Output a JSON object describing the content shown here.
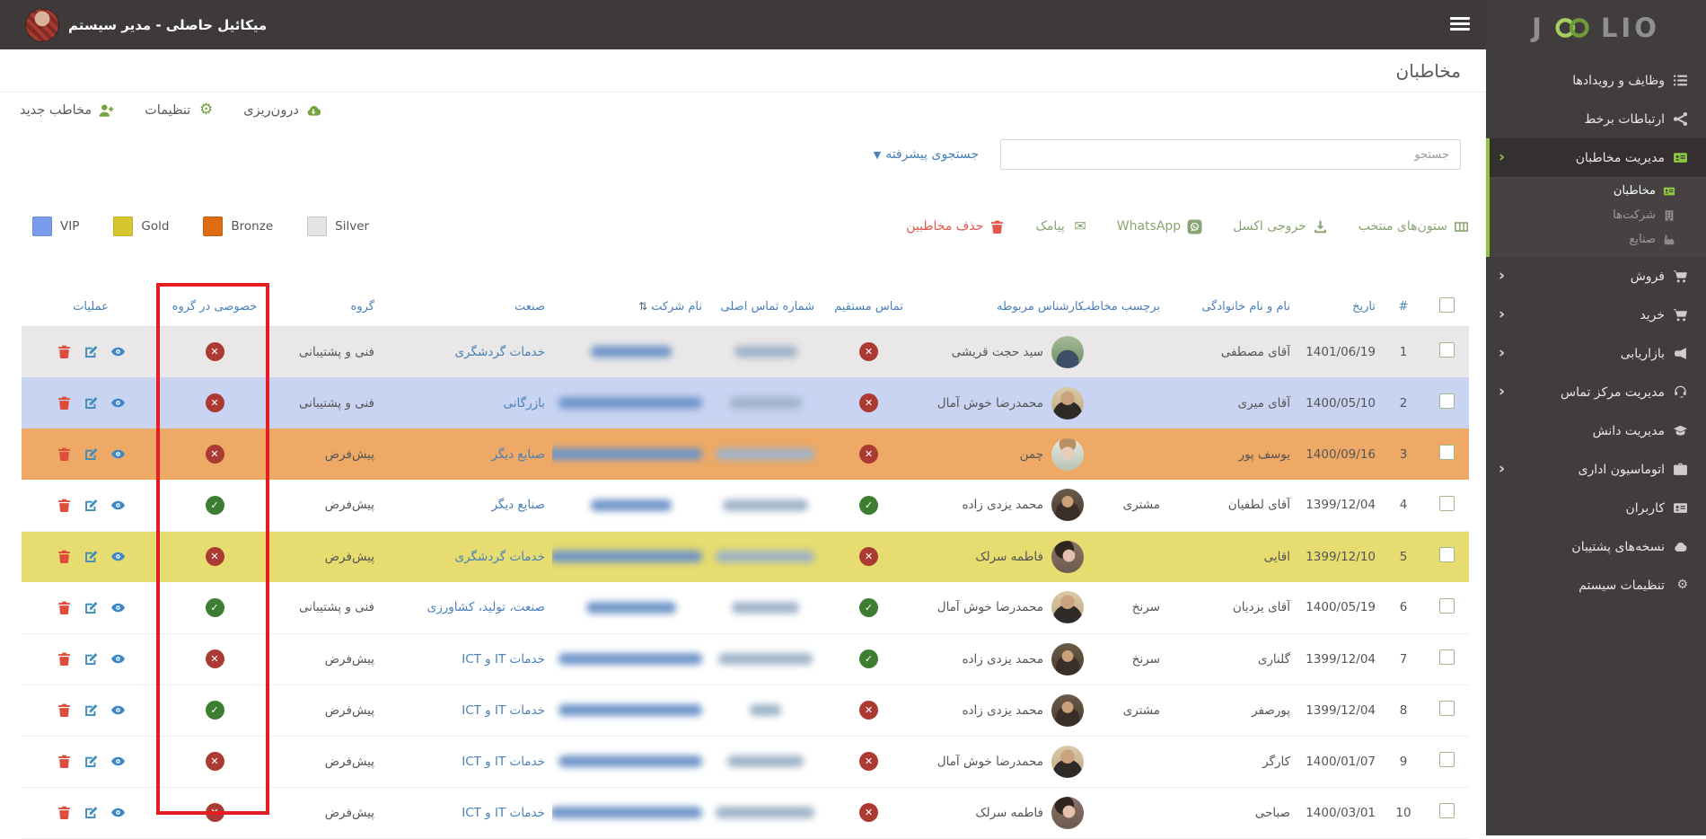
{
  "topbar": {
    "user_name": "میکائیل حاصلی - مدیر سیستم"
  },
  "sidebar": {
    "logo_left": "J",
    "logo_right": "LIO",
    "menu": [
      {
        "label": "وظایف و رویدادها",
        "icon": "tasks-icon"
      },
      {
        "label": "ارتباطات برخط",
        "icon": "network-icon"
      },
      {
        "label": "مدیریت مخاطبان",
        "icon": "idcard-icon",
        "chevron": true,
        "active": true,
        "children": [
          {
            "label": "مخاطبان",
            "icon": "idcard-icon",
            "active": true
          },
          {
            "label": "شرکت‌ها",
            "icon": "building-icon"
          },
          {
            "label": "صنایع",
            "icon": "factory-icon"
          }
        ]
      },
      {
        "label": "فروش",
        "icon": "cart-icon",
        "chevron": true
      },
      {
        "label": "خرید",
        "icon": "cart-icon",
        "chevron": true
      },
      {
        "label": "بازاریابی",
        "icon": "megaphone-icon",
        "chevron": true
      },
      {
        "label": "مدیریت مرکز تماس",
        "icon": "headset-icon",
        "chevron": true
      },
      {
        "label": "مدیریت دانش",
        "icon": "graduation-icon"
      },
      {
        "label": "اتوماسیون اداری",
        "icon": "briefcase-icon",
        "chevron": true
      },
      {
        "label": "کاربران",
        "icon": "idcard-icon"
      },
      {
        "label": "نسخه‌های پشتیبان",
        "icon": "backup-icon"
      },
      {
        "label": "تنظیمات سیستم",
        "icon": "gear-icon"
      }
    ]
  },
  "page": {
    "title": "مخاطبان",
    "header_actions": [
      {
        "label": "مخاطب جدید",
        "icon": "person-plus-icon"
      },
      {
        "label": "تنظیمات",
        "icon": "gear-icon"
      },
      {
        "label": "درون‌ریزی",
        "icon": "cloud-import-icon"
      }
    ],
    "search": {
      "placeholder": "جستجو",
      "advanced_label": "جستجوی پیشرفته"
    },
    "legend": [
      {
        "label": "VIP",
        "color": "#7b9bee"
      },
      {
        "label": "Gold",
        "color": "#d8c630"
      },
      {
        "label": "Bronze",
        "color": "#e06c12"
      },
      {
        "label": "Silver",
        "color": "#e5e2e5"
      }
    ],
    "table_actions": [
      {
        "label": "ستون‌های منتخب",
        "icon": "columns-icon",
        "style": "green"
      },
      {
        "label": "خروجی اکسل",
        "icon": "download-icon",
        "style": "green"
      },
      {
        "label": "WhatsApp",
        "icon": "whatsapp-icon",
        "style": "green"
      },
      {
        "label": "پیامک",
        "icon": "envelope-icon",
        "style": "green"
      },
      {
        "label": "حذف مخاطبین",
        "icon": "trash-icon",
        "style": "red"
      }
    ]
  },
  "table": {
    "columns": [
      {
        "label": "",
        "key": "check"
      },
      {
        "label": "#",
        "key": "num"
      },
      {
        "label": "تاریخ",
        "key": "date"
      },
      {
        "label": "نام و نام خانوادگی",
        "key": "name"
      },
      {
        "label": "برچسب مخاطب",
        "key": "tag"
      },
      {
        "label": "کارشناس مربوطه",
        "key": "expert"
      },
      {
        "label": "تماس مستقیم",
        "key": "direct"
      },
      {
        "label": "شماره تماس اصلی",
        "key": "phone"
      },
      {
        "label": "نام شرکت",
        "key": "company",
        "sortable": true
      },
      {
        "label": "صنعت",
        "key": "industry"
      },
      {
        "label": "گروه",
        "key": "group"
      },
      {
        "label": "خصوصی در گروه",
        "key": "private"
      },
      {
        "label": "عملیات",
        "key": "ops"
      }
    ],
    "rows": [
      {
        "num": "1",
        "date": "1401/06/19",
        "name": "آقای مصطفی",
        "tag": "",
        "expert": "سید حجت قریشی",
        "avatar": "ghoreyshi",
        "direct": false,
        "phone_blur_w": 70,
        "company_blur_w": 90,
        "industry": "خدمات گردشگری",
        "group": "فنی و پشتیبانی",
        "private": false,
        "color": "silver"
      },
      {
        "num": "2",
        "date": "1400/05/10",
        "name": "آقای میری",
        "tag": "",
        "expert": "محمدرضا خوش آمال",
        "avatar": "khoshamal",
        "direct": false,
        "phone_blur_w": 80,
        "company_blur_w": 160,
        "industry": "بازرگانی",
        "group": "فنی و پشتیبانی",
        "private": false,
        "color": "vip"
      },
      {
        "num": "3",
        "date": "1400/09/16",
        "name": "یوسف پور",
        "tag": "",
        "expert": "چمن",
        "avatar": "chaman",
        "direct": false,
        "phone_blur_w": 110,
        "company_blur_w": 175,
        "industry": "صنایع دیگر",
        "group": "پیش‌فرض",
        "private": false,
        "color": "bronze"
      },
      {
        "num": "4",
        "date": "1399/12/04",
        "name": "آقای لطفیان",
        "tag": "مشتری",
        "expert": "محمد یزدی زاده",
        "avatar": "yazdizadeh",
        "direct": true,
        "phone_blur_w": 95,
        "company_blur_w": 90,
        "industry": "صنایع دیگر",
        "group": "پیش‌فرض",
        "private": true,
        "color": "none"
      },
      {
        "num": "5",
        "date": "1399/12/10",
        "name": "اقایی",
        "tag": "",
        "expert": "فاطمه سرلک",
        "avatar": "sarlak",
        "direct": false,
        "phone_blur_w": 110,
        "company_blur_w": 170,
        "industry": "خدمات گردشگری",
        "group": "پیش‌فرض",
        "private": false,
        "color": "gold"
      },
      {
        "num": "6",
        "date": "1400/05/19",
        "name": "آقای یزدیان",
        "tag": "سرنخ",
        "expert": "محمدرضا خوش آمال",
        "avatar": "khoshamal",
        "direct": true,
        "phone_blur_w": 75,
        "company_blur_w": 100,
        "industry": "صنعت، تولید، کشاورزی",
        "group": "فنی و پشتیبانی",
        "private": true,
        "color": "none"
      },
      {
        "num": "7",
        "date": "1399/12/04",
        "name": "گلناری",
        "tag": "سرنخ",
        "expert": "محمد یزدی زاده",
        "avatar": "yazdizadeh",
        "direct": true,
        "phone_blur_w": 105,
        "company_blur_w": 160,
        "industry": "خدمات IT و ICT",
        "group": "پیش‌فرض",
        "private": false,
        "color": "none"
      },
      {
        "num": "8",
        "date": "1399/12/04",
        "name": "پورصفر",
        "tag": "مشتری",
        "expert": "محمد یزدی زاده",
        "avatar": "yazdizadeh",
        "direct": false,
        "phone_blur_w": 35,
        "company_blur_w": 160,
        "industry": "خدمات IT و ICT",
        "group": "پیش‌فرض",
        "private": true,
        "color": "none"
      },
      {
        "num": "9",
        "date": "1400/01/07",
        "name": "کارگر",
        "tag": "",
        "expert": "محمدرضا خوش آمال",
        "avatar": "khoshamal",
        "direct": false,
        "phone_blur_w": 85,
        "company_blur_w": 160,
        "industry": "خدمات IT و ICT",
        "group": "پیش‌فرض",
        "private": false,
        "color": "none"
      },
      {
        "num": "10",
        "date": "1400/03/01",
        "name": "صباحی",
        "tag": "",
        "expert": "فاطمه سرلک",
        "avatar": "sarlak",
        "direct": false,
        "phone_blur_w": 110,
        "company_blur_w": 170,
        "industry": "خدمات IT و ICT",
        "group": "پیش‌فرض",
        "private": false,
        "color": "none"
      }
    ]
  }
}
